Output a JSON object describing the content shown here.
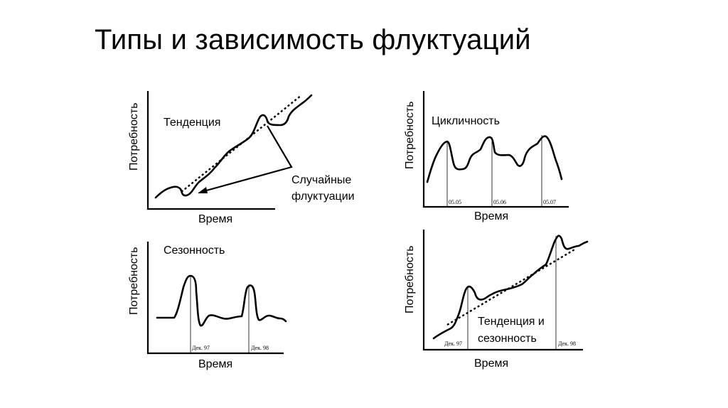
{
  "title": "Типы и зависимость флуктуаций",
  "panels": {
    "trend": {
      "ylabel": "Потребность",
      "xlabel": "Время",
      "label": "Тенденция",
      "callout": [
        "Случайные",
        "флуктуации"
      ]
    },
    "cyclic": {
      "ylabel": "Потребность",
      "xlabel": "Время",
      "label": "Цикличность",
      "dates": [
        "05.05",
        "05.06",
        "05.07"
      ]
    },
    "seasonal": {
      "ylabel": "Потребность",
      "xlabel": "Время",
      "label": "Сезонность",
      "dates": [
        "Дек. 97",
        "Дек. 98"
      ]
    },
    "trend_seasonal": {
      "ylabel": "Потребность",
      "xlabel": "Время",
      "label": [
        "Тенденция и",
        "сезонность"
      ],
      "dates": [
        "Дек. 97",
        "Дек. 98"
      ]
    }
  },
  "colors": {
    "ink": "#000000",
    "background": "#ffffff"
  }
}
